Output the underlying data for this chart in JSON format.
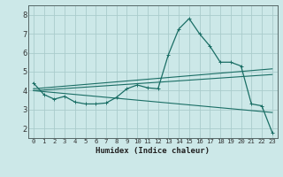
{
  "xlabel": "Humidex (Indice chaleur)",
  "background_color": "#cce8e8",
  "grid_color": "#aacccc",
  "line_color": "#1a6e65",
  "xlim": [
    -0.5,
    23.5
  ],
  "ylim": [
    1.5,
    8.5
  ],
  "xticks": [
    0,
    1,
    2,
    3,
    4,
    5,
    6,
    7,
    8,
    9,
    10,
    11,
    12,
    13,
    14,
    15,
    16,
    17,
    18,
    19,
    20,
    21,
    22,
    23
  ],
  "yticks": [
    2,
    3,
    4,
    5,
    6,
    7,
    8
  ],
  "main_series": {
    "x": [
      0,
      1,
      2,
      3,
      4,
      5,
      6,
      7,
      8,
      9,
      10,
      11,
      12,
      13,
      14,
      15,
      16,
      17,
      18,
      19,
      20,
      21,
      22,
      23
    ],
    "y": [
      4.4,
      3.8,
      3.55,
      3.7,
      3.4,
      3.3,
      3.3,
      3.35,
      3.65,
      4.1,
      4.3,
      4.15,
      4.1,
      5.9,
      7.25,
      7.8,
      7.0,
      6.35,
      5.5,
      5.5,
      5.3,
      3.3,
      3.2,
      1.8
    ]
  },
  "trend_lines": [
    {
      "x": [
        0,
        23
      ],
      "y": [
        4.1,
        5.15
      ]
    },
    {
      "x": [
        0,
        23
      ],
      "y": [
        4.0,
        4.85
      ]
    },
    {
      "x": [
        0,
        23
      ],
      "y": [
        4.0,
        2.85
      ]
    }
  ]
}
